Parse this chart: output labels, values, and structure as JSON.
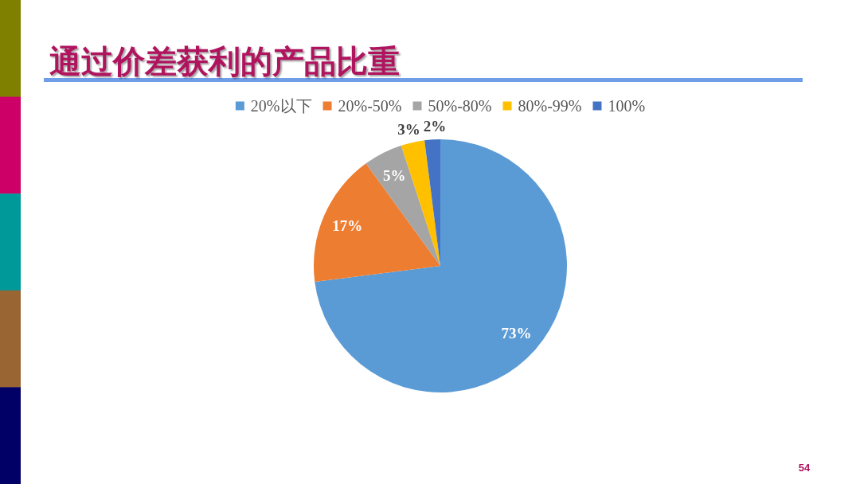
{
  "chart_data": {
    "type": "pie",
    "title": "通过价差获利的产品比重",
    "categories": [
      "20%以下",
      "20%-50%",
      "50%-80%",
      "80%-99%",
      "100%"
    ],
    "values": [
      73,
      17,
      5,
      3,
      2
    ],
    "colors": [
      "#5b9bd5",
      "#ed7d31",
      "#a5a5a5",
      "#ffc000",
      "#4472c4"
    ],
    "value_labels": [
      "73%",
      "17%",
      "5%",
      "3%",
      "2%"
    ],
    "legend": "top",
    "annotations": [
      "54"
    ]
  }
}
